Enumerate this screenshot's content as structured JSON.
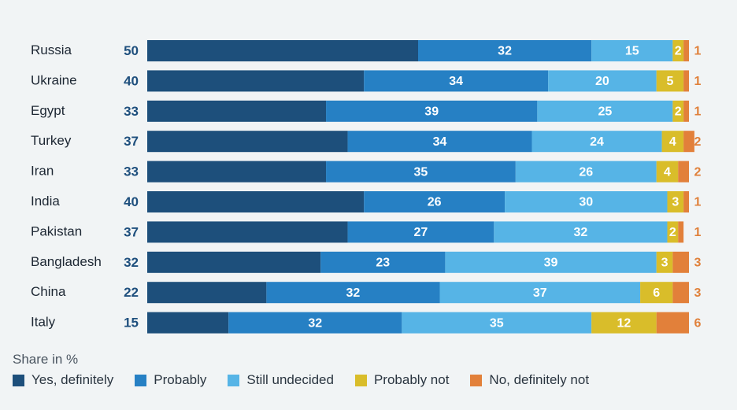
{
  "chart_data": {
    "type": "bar",
    "orientation": "horizontal",
    "stacked": true,
    "categories": [
      "Russia",
      "Ukraine",
      "Egypt",
      "Turkey",
      "Iran",
      "India",
      "Pakistan",
      "Bangladesh",
      "China",
      "Italy"
    ],
    "series": [
      {
        "name": "Yes, definitely",
        "color": "#1d4f7b",
        "values": [
          50,
          40,
          33,
          37,
          33,
          40,
          37,
          32,
          22,
          15
        ]
      },
      {
        "name": "Probably",
        "color": "#2680c4",
        "values": [
          32,
          34,
          39,
          34,
          35,
          26,
          27,
          23,
          32,
          32
        ]
      },
      {
        "name": "Still undecided",
        "color": "#56b4e6",
        "values": [
          15,
          20,
          25,
          24,
          26,
          30,
          32,
          39,
          37,
          35
        ]
      },
      {
        "name": "Probably not",
        "color": "#d9bd2a",
        "values": [
          2,
          5,
          2,
          4,
          4,
          3,
          2,
          3,
          6,
          12
        ]
      },
      {
        "name": "No, definitely not",
        "color": "#e2803a",
        "values": [
          1,
          1,
          1,
          2,
          2,
          1,
          1,
          3,
          3,
          6
        ]
      }
    ],
    "xlim": [
      0,
      100
    ],
    "legend_title": "Share in %",
    "legend_position": "bottom-left"
  }
}
